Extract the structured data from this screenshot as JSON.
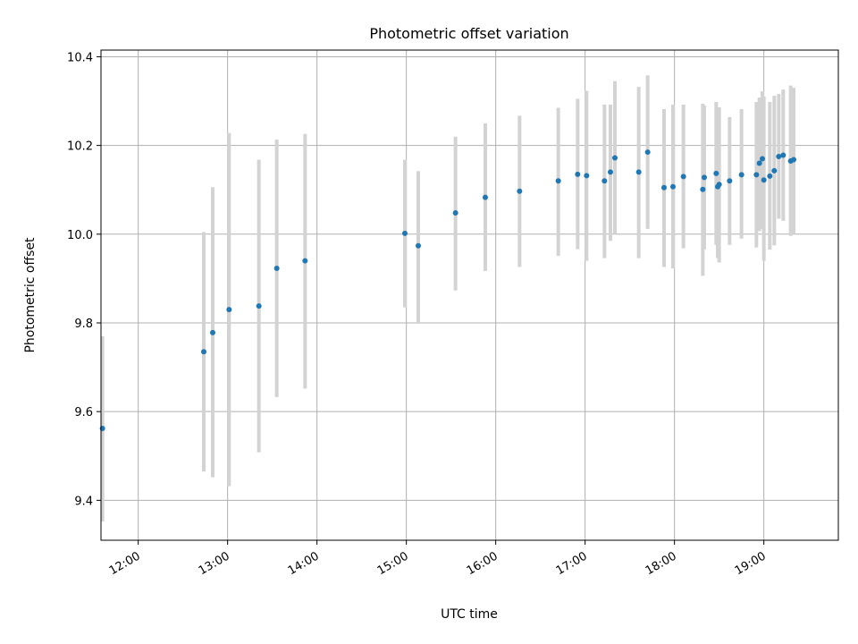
{
  "chart_data": {
    "type": "scatter",
    "title": "Photometric offset variation",
    "xlabel": "UTC time",
    "ylabel": "Photometric offset",
    "x_format": "time",
    "xlim": [
      "11:35",
      "19:50"
    ],
    "ylim": [
      9.31,
      10.415
    ],
    "xticks": [
      "12:00",
      "13:00",
      "14:00",
      "15:00",
      "16:00",
      "17:00",
      "18:00",
      "19:00"
    ],
    "yticks": [
      9.4,
      9.6,
      9.8,
      10.0,
      10.2,
      10.4
    ],
    "yticks_labels": [
      "9.4",
      "9.6",
      "9.8",
      "10.0",
      "10.2",
      "10.4"
    ],
    "grid": true,
    "colors": {
      "point": "#1f77b4",
      "errorbar": "#d3d3d3",
      "grid": "#b0b0b0"
    },
    "series": [
      {
        "points": [
          {
            "x": "11:36",
            "y": 9.562,
            "lo": 9.352,
            "hi": 9.77
          },
          {
            "x": "12:44",
            "y": 9.735,
            "lo": 9.465,
            "hi": 10.005
          },
          {
            "x": "12:50",
            "y": 9.778,
            "lo": 9.452,
            "hi": 10.106
          },
          {
            "x": "13:01",
            "y": 9.83,
            "lo": 9.432,
            "hi": 10.228
          },
          {
            "x": "13:21",
            "y": 9.838,
            "lo": 9.508,
            "hi": 10.168
          },
          {
            "x": "13:33",
            "y": 9.923,
            "lo": 9.633,
            "hi": 10.213
          },
          {
            "x": "13:52",
            "y": 9.94,
            "lo": 9.652,
            "hi": 10.226
          },
          {
            "x": "14:59",
            "y": 10.002,
            "lo": 9.835,
            "hi": 10.168
          },
          {
            "x": "15:08",
            "y": 9.974,
            "lo": 9.8,
            "hi": 10.142
          },
          {
            "x": "15:33",
            "y": 10.048,
            "lo": 9.873,
            "hi": 10.22
          },
          {
            "x": "15:53",
            "y": 10.083,
            "lo": 9.917,
            "hi": 10.25
          },
          {
            "x": "16:16",
            "y": 10.097,
            "lo": 9.926,
            "hi": 10.267
          },
          {
            "x": "16:42",
            "y": 10.12,
            "lo": 9.951,
            "hi": 10.285
          },
          {
            "x": "16:55",
            "y": 10.135,
            "lo": 9.966,
            "hi": 10.305
          },
          {
            "x": "17:01",
            "y": 10.132,
            "lo": 9.94,
            "hi": 10.323
          },
          {
            "x": "17:13",
            "y": 10.12,
            "lo": 9.946,
            "hi": 10.292
          },
          {
            "x": "17:17",
            "y": 10.14,
            "lo": 9.985,
            "hi": 10.292
          },
          {
            "x": "17:20",
            "y": 10.172,
            "lo": 10.0,
            "hi": 10.345
          },
          {
            "x": "17:36",
            "y": 10.14,
            "lo": 9.946,
            "hi": 10.332
          },
          {
            "x": "17:42",
            "y": 10.185,
            "lo": 10.012,
            "hi": 10.358
          },
          {
            "x": "17:53",
            "y": 10.105,
            "lo": 9.926,
            "hi": 10.282
          },
          {
            "x": "17:59",
            "y": 10.107,
            "lo": 9.923,
            "hi": 10.292
          },
          {
            "x": "18:06",
            "y": 10.13,
            "lo": 9.968,
            "hi": 10.292
          },
          {
            "x": "18:19",
            "y": 10.101,
            "lo": 9.906,
            "hi": 10.294
          },
          {
            "x": "18:20",
            "y": 10.128,
            "lo": 9.966,
            "hi": 10.29
          },
          {
            "x": "18:28",
            "y": 10.137,
            "lo": 9.976,
            "hi": 10.298
          },
          {
            "x": "18:29",
            "y": 10.107,
            "lo": 9.946,
            "hi": 10.28
          },
          {
            "x": "18:30",
            "y": 10.112,
            "lo": 9.936,
            "hi": 10.286
          },
          {
            "x": "18:37",
            "y": 10.12,
            "lo": 9.976,
            "hi": 10.264
          },
          {
            "x": "18:45",
            "y": 10.134,
            "lo": 9.99,
            "hi": 10.282
          },
          {
            "x": "18:55",
            "y": 10.134,
            "lo": 9.97,
            "hi": 10.298
          },
          {
            "x": "18:57",
            "y": 10.16,
            "lo": 10.007,
            "hi": 10.308
          },
          {
            "x": "18:59",
            "y": 10.17,
            "lo": 10.012,
            "hi": 10.322
          },
          {
            "x": "19:00",
            "y": 10.122,
            "lo": 9.94,
            "hi": 10.31
          },
          {
            "x": "19:04",
            "y": 10.131,
            "lo": 9.965,
            "hi": 10.298
          },
          {
            "x": "19:07",
            "y": 10.143,
            "lo": 9.975,
            "hi": 10.312
          },
          {
            "x": "19:10",
            "y": 10.175,
            "lo": 10.035,
            "hi": 10.316
          },
          {
            "x": "19:13",
            "y": 10.178,
            "lo": 10.03,
            "hi": 10.326
          },
          {
            "x": "19:18",
            "y": 10.165,
            "lo": 9.996,
            "hi": 10.335
          },
          {
            "x": "19:20",
            "y": 10.168,
            "lo": 10.002,
            "hi": 10.33
          }
        ]
      }
    ]
  }
}
